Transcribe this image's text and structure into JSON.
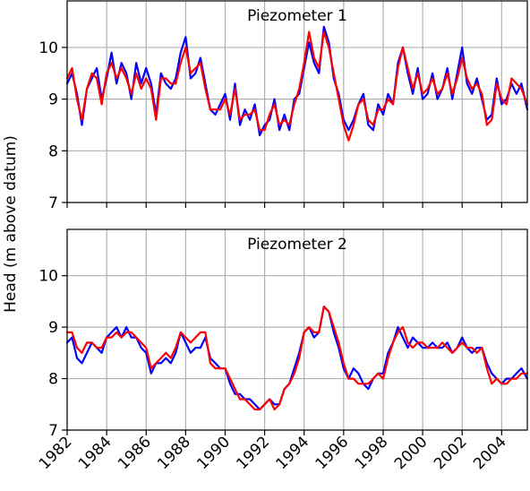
{
  "figure": {
    "ylabel": "Head (m above datum)"
  },
  "chart_data": [
    {
      "type": "line",
      "title": "Piezometer 1",
      "ylim": [
        7,
        10.9
      ],
      "xlim": [
        1982,
        2005.3
      ],
      "yticks": [
        7,
        8,
        9,
        10
      ],
      "xticks": [
        1982,
        1984,
        1986,
        1988,
        1990,
        1992,
        1994,
        1996,
        1998,
        2000,
        2002,
        2004
      ],
      "grid": true,
      "x": [
        1982.0,
        1982.25,
        1982.5,
        1982.75,
        1983.0,
        1983.25,
        1983.5,
        1983.75,
        1984.0,
        1984.25,
        1984.5,
        1984.75,
        1985.0,
        1985.25,
        1985.5,
        1985.75,
        1986.0,
        1986.25,
        1986.5,
        1986.75,
        1987.0,
        1987.25,
        1987.5,
        1987.75,
        1988.0,
        1988.25,
        1988.5,
        1988.75,
        1989.0,
        1989.25,
        1989.5,
        1989.75,
        1990.0,
        1990.25,
        1990.5,
        1990.75,
        1991.0,
        1991.25,
        1991.5,
        1991.75,
        1992.0,
        1992.25,
        1992.5,
        1992.75,
        1993.0,
        1993.25,
        1993.5,
        1993.75,
        1994.0,
        1994.25,
        1994.5,
        1994.75,
        1995.0,
        1995.25,
        1995.5,
        1995.75,
        1996.0,
        1996.25,
        1996.5,
        1996.75,
        1997.0,
        1997.25,
        1997.5,
        1997.75,
        1998.0,
        1998.25,
        1998.5,
        1998.75,
        1999.0,
        1999.25,
        1999.5,
        1999.75,
        2000.0,
        2000.25,
        2000.5,
        2000.75,
        2001.0,
        2001.25,
        2001.5,
        2001.75,
        2002.0,
        2002.25,
        2002.5,
        2002.75,
        2003.0,
        2003.25,
        2003.5,
        2003.75,
        2004.0,
        2004.25,
        2004.5,
        2004.75,
        2005.0,
        2005.3
      ],
      "series": [
        {
          "color": "#0000ff",
          "values": [
            9.3,
            9.5,
            9.1,
            8.5,
            9.2,
            9.4,
            9.6,
            9.0,
            9.4,
            9.9,
            9.3,
            9.7,
            9.5,
            9.0,
            9.7,
            9.3,
            9.6,
            9.3,
            8.7,
            9.5,
            9.3,
            9.2,
            9.4,
            9.9,
            10.2,
            9.4,
            9.5,
            9.8,
            9.3,
            8.8,
            8.7,
            8.9,
            9.1,
            8.6,
            9.3,
            8.5,
            8.8,
            8.6,
            8.9,
            8.3,
            8.5,
            8.6,
            9.0,
            8.4,
            8.7,
            8.4,
            9.0,
            9.1,
            9.6,
            10.1,
            9.7,
            9.5,
            10.4,
            10.1,
            9.4,
            9.1,
            8.6,
            8.4,
            8.6,
            8.9,
            9.1,
            8.5,
            8.4,
            8.9,
            8.7,
            9.1,
            8.9,
            9.7,
            10.0,
            9.5,
            9.1,
            9.6,
            9.0,
            9.1,
            9.5,
            9.0,
            9.2,
            9.6,
            9.0,
            9.5,
            10.0,
            9.3,
            9.1,
            9.4,
            9.0,
            8.6,
            8.7,
            9.4,
            8.9,
            9.0,
            9.3,
            9.1,
            9.3,
            8.8
          ]
        },
        {
          "color": "#ff0000",
          "values": [
            9.4,
            9.6,
            9.0,
            8.6,
            9.2,
            9.5,
            9.4,
            8.9,
            9.5,
            9.7,
            9.4,
            9.6,
            9.4,
            9.1,
            9.5,
            9.2,
            9.4,
            9.2,
            8.6,
            9.4,
            9.4,
            9.3,
            9.3,
            9.7,
            10.0,
            9.5,
            9.6,
            9.7,
            9.2,
            8.8,
            8.8,
            8.8,
            9.0,
            8.7,
            9.2,
            8.6,
            8.7,
            8.7,
            8.8,
            8.4,
            8.4,
            8.7,
            8.9,
            8.5,
            8.6,
            8.5,
            8.9,
            9.2,
            9.7,
            10.3,
            9.8,
            9.6,
            10.3,
            10.0,
            9.5,
            9.0,
            8.5,
            8.2,
            8.5,
            8.9,
            9.0,
            8.6,
            8.5,
            8.8,
            8.8,
            9.0,
            8.9,
            9.6,
            10.0,
            9.6,
            9.2,
            9.5,
            9.1,
            9.2,
            9.4,
            9.1,
            9.2,
            9.5,
            9.1,
            9.4,
            9.8,
            9.4,
            9.2,
            9.3,
            9.1,
            8.5,
            8.6,
            9.3,
            9.0,
            8.9,
            9.4,
            9.3,
            9.2,
            8.9
          ]
        }
      ]
    },
    {
      "type": "line",
      "title": "Piezometer 2",
      "ylim": [
        7,
        10.9
      ],
      "xlim": [
        1982,
        2005.3
      ],
      "yticks": [
        7,
        8,
        9,
        10
      ],
      "xticks": [
        1982,
        1984,
        1986,
        1988,
        1990,
        1992,
        1994,
        1996,
        1998,
        2000,
        2002,
        2004
      ],
      "grid": true,
      "x": [
        1982.0,
        1982.25,
        1982.5,
        1982.75,
        1983.0,
        1983.25,
        1983.5,
        1983.75,
        1984.0,
        1984.25,
        1984.5,
        1984.75,
        1985.0,
        1985.25,
        1985.5,
        1985.75,
        1986.0,
        1986.25,
        1986.5,
        1986.75,
        1987.0,
        1987.25,
        1987.5,
        1987.75,
        1988.0,
        1988.25,
        1988.5,
        1988.75,
        1989.0,
        1989.25,
        1989.5,
        1989.75,
        1990.0,
        1990.25,
        1990.5,
        1990.75,
        1991.0,
        1991.25,
        1991.5,
        1991.75,
        1992.0,
        1992.25,
        1992.5,
        1992.75,
        1993.0,
        1993.25,
        1993.5,
        1993.75,
        1994.0,
        1994.25,
        1994.5,
        1994.75,
        1995.0,
        1995.25,
        1995.5,
        1995.75,
        1996.0,
        1996.25,
        1996.5,
        1996.75,
        1997.0,
        1997.25,
        1997.5,
        1997.75,
        1998.0,
        1998.25,
        1998.5,
        1998.75,
        1999.0,
        1999.25,
        1999.5,
        1999.75,
        2000.0,
        2000.25,
        2000.5,
        2000.75,
        2001.0,
        2001.25,
        2001.5,
        2001.75,
        2002.0,
        2002.25,
        2002.5,
        2002.75,
        2003.0,
        2003.25,
        2003.5,
        2003.75,
        2004.0,
        2004.25,
        2004.5,
        2004.75,
        2005.0,
        2005.3
      ],
      "series": [
        {
          "color": "#0000ff",
          "values": [
            8.7,
            8.8,
            8.4,
            8.3,
            8.5,
            8.7,
            8.6,
            8.5,
            8.8,
            8.9,
            9.0,
            8.8,
            9.0,
            8.8,
            8.8,
            8.6,
            8.5,
            8.1,
            8.3,
            8.3,
            8.4,
            8.3,
            8.5,
            8.9,
            8.7,
            8.5,
            8.6,
            8.6,
            8.8,
            8.4,
            8.3,
            8.2,
            8.2,
            7.9,
            7.7,
            7.7,
            7.6,
            7.6,
            7.5,
            7.4,
            7.5,
            7.6,
            7.5,
            7.5,
            7.8,
            7.9,
            8.2,
            8.5,
            8.9,
            9.0,
            8.8,
            8.9,
            9.4,
            9.3,
            8.9,
            8.6,
            8.2,
            8.0,
            8.2,
            8.1,
            7.9,
            7.8,
            8.0,
            8.1,
            8.1,
            8.5,
            8.7,
            9.0,
            8.8,
            8.6,
            8.8,
            8.7,
            8.6,
            8.6,
            8.7,
            8.6,
            8.6,
            8.7,
            8.5,
            8.6,
            8.8,
            8.6,
            8.5,
            8.6,
            8.6,
            8.3,
            8.1,
            8.0,
            7.9,
            8.0,
            8.0,
            8.1,
            8.2,
            8.0
          ]
        },
        {
          "color": "#ff0000",
          "values": [
            8.9,
            8.9,
            8.6,
            8.5,
            8.7,
            8.7,
            8.6,
            8.6,
            8.8,
            8.8,
            8.9,
            8.8,
            8.9,
            8.9,
            8.8,
            8.7,
            8.6,
            8.2,
            8.3,
            8.4,
            8.5,
            8.4,
            8.6,
            8.9,
            8.8,
            8.7,
            8.8,
            8.9,
            8.9,
            8.3,
            8.2,
            8.2,
            8.2,
            8.0,
            7.8,
            7.6,
            7.6,
            7.5,
            7.4,
            7.4,
            7.5,
            7.6,
            7.4,
            7.5,
            7.8,
            7.9,
            8.1,
            8.4,
            8.9,
            9.0,
            8.9,
            8.9,
            9.4,
            9.3,
            9.0,
            8.7,
            8.3,
            8.0,
            8.0,
            7.9,
            7.9,
            7.9,
            8.0,
            8.1,
            8.0,
            8.4,
            8.7,
            8.9,
            9.0,
            8.7,
            8.6,
            8.7,
            8.7,
            8.6,
            8.6,
            8.6,
            8.7,
            8.6,
            8.5,
            8.6,
            8.7,
            8.6,
            8.6,
            8.5,
            8.6,
            8.2,
            7.9,
            8.0,
            7.9,
            7.9,
            8.0,
            8.0,
            8.1,
            8.1
          ]
        }
      ]
    }
  ]
}
